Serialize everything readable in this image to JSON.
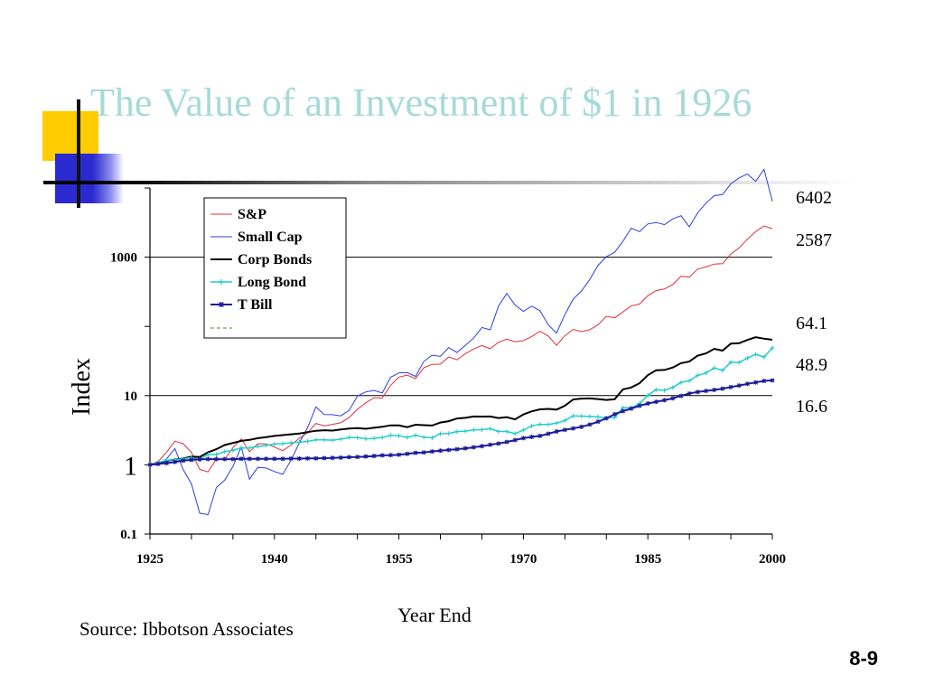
{
  "slide": {
    "title": "The Value of an Investment of $1 in 1926",
    "source": "Source: Ibbotson Associates",
    "page_number": "8-9"
  },
  "chart_data": {
    "type": "line",
    "title": "",
    "xlabel": "Year End",
    "ylabel": "Index",
    "yscale": "log",
    "xlim": [
      1925,
      2000
    ],
    "ylim": [
      0.1,
      10000
    ],
    "x_ticks": [
      "1925",
      "1940",
      "1955",
      "1970",
      "1985",
      "2000"
    ],
    "y_ticks": [
      {
        "value": 0.1,
        "label": "0.1",
        "style": "bold"
      },
      {
        "value": 1,
        "label": "1",
        "style": "large"
      },
      {
        "value": 10,
        "label": "10",
        "style": "bold"
      },
      {
        "value": 1000,
        "label": "1000",
        "style": "bold"
      }
    ],
    "gridlines_y": [
      10,
      1000
    ],
    "legend_position": "top-left",
    "end_labels": [
      "6402",
      "2587",
      "64.1",
      "48.9",
      "16.6"
    ],
    "series": [
      {
        "name": "S&P",
        "color": "#e0303a",
        "marker": "none",
        "width": 1,
        "x": [
          1925,
          1926,
          1927,
          1928,
          1929,
          1930,
          1931,
          1932,
          1933,
          1934,
          1935,
          1936,
          1937,
          1938,
          1939,
          1940,
          1941,
          1942,
          1943,
          1944,
          1945,
          1946,
          1947,
          1948,
          1949,
          1950,
          1951,
          1952,
          1953,
          1954,
          1955,
          1956,
          1957,
          1958,
          1959,
          1960,
          1961,
          1962,
          1963,
          1964,
          1965,
          1966,
          1967,
          1968,
          1969,
          1970,
          1971,
          1972,
          1973,
          1974,
          1975,
          1976,
          1977,
          1978,
          1979,
          1980,
          1981,
          1982,
          1983,
          1984,
          1985,
          1986,
          1987,
          1988,
          1989,
          1990,
          1991,
          1992,
          1993,
          1994,
          1995,
          1996,
          1997,
          1998,
          1999,
          2000
        ],
        "y": [
          1,
          1.12,
          1.53,
          2.2,
          2.02,
          1.52,
          0.86,
          0.79,
          1.21,
          1.2,
          1.77,
          2.37,
          1.54,
          2.02,
          2.01,
          1.81,
          1.6,
          1.93,
          2.42,
          2.9,
          3.96,
          3.64,
          3.85,
          4.06,
          4.82,
          6.35,
          7.87,
          9.32,
          9.23,
          14.1,
          18.5,
          19.8,
          17.6,
          25.3,
          28.3,
          28.5,
          36.1,
          33,
          40.4,
          47.1,
          52.9,
          47.6,
          59,
          65.5,
          60,
          62.4,
          71.4,
          84.9,
          72.5,
          53.3,
          73.1,
          90.5,
          84,
          89.5,
          106,
          140,
          133,
          162,
          198,
          210,
          278,
          329,
          347,
          404,
          532,
          515,
          672,
          723,
          796,
          807,
          1110,
          1364,
          1819,
          2339,
          2831,
          2587
        ]
      },
      {
        "name": "Small Cap",
        "color": "#2b3ee0",
        "marker": "none",
        "width": 1,
        "x": [
          1925,
          1926,
          1927,
          1928,
          1929,
          1930,
          1931,
          1932,
          1933,
          1934,
          1935,
          1936,
          1937,
          1938,
          1939,
          1940,
          1941,
          1942,
          1943,
          1944,
          1945,
          1946,
          1947,
          1948,
          1949,
          1950,
          1951,
          1952,
          1953,
          1954,
          1955,
          1956,
          1957,
          1958,
          1959,
          1960,
          1961,
          1962,
          1963,
          1964,
          1965,
          1966,
          1967,
          1968,
          1969,
          1970,
          1971,
          1972,
          1973,
          1974,
          1975,
          1976,
          1977,
          1978,
          1979,
          1980,
          1981,
          1982,
          1983,
          1984,
          1985,
          1986,
          1987,
          1988,
          1989,
          1990,
          1991,
          1992,
          1993,
          1994,
          1995,
          1996,
          1997,
          1998,
          1999,
          2000
        ],
        "y": [
          1,
          1,
          1.22,
          1.72,
          0.86,
          0.53,
          0.2,
          0.19,
          0.47,
          0.6,
          0.95,
          1.83,
          0.62,
          0.92,
          0.9,
          0.8,
          0.73,
          1.17,
          2.09,
          3.44,
          6.88,
          5.33,
          5.31,
          5.1,
          6.1,
          9.86,
          11.3,
          11.9,
          10.9,
          18.4,
          21.3,
          21.5,
          18.9,
          31.2,
          38.3,
          36.9,
          49.5,
          41.9,
          53.2,
          67.7,
          96.4,
          89.2,
          196,
          300,
          203,
          165,
          196,
          168,
          105,
          80,
          148,
          247,
          325,
          478,
          763,
          1017,
          1176,
          1696,
          2621,
          2344,
          3023,
          3171,
          2949,
          3573,
          3979,
          2745,
          4348,
          6040,
          7750,
          8030,
          11500,
          14000,
          15900,
          12500,
          18600,
          6402
        ]
      },
      {
        "name": "Corp Bonds",
        "color": "#000000",
        "marker": "none",
        "width": 2,
        "x": [
          1925,
          1926,
          1927,
          1928,
          1929,
          1930,
          1931,
          1932,
          1933,
          1934,
          1935,
          1936,
          1937,
          1938,
          1939,
          1940,
          1941,
          1942,
          1943,
          1944,
          1945,
          1946,
          1947,
          1948,
          1949,
          1950,
          1951,
          1952,
          1953,
          1954,
          1955,
          1956,
          1957,
          1958,
          1959,
          1960,
          1961,
          1962,
          1963,
          1964,
          1965,
          1966,
          1967,
          1968,
          1969,
          1970,
          1971,
          1972,
          1973,
          1974,
          1975,
          1976,
          1977,
          1978,
          1979,
          1980,
          1981,
          1982,
          1983,
          1984,
          1985,
          1986,
          1987,
          1988,
          1989,
          1990,
          1991,
          1992,
          1993,
          1994,
          1995,
          1996,
          1997,
          1998,
          1999,
          2000
        ],
        "y": [
          1,
          1.07,
          1.15,
          1.19,
          1.23,
          1.32,
          1.3,
          1.52,
          1.68,
          1.93,
          2.07,
          2.22,
          2.29,
          2.43,
          2.52,
          2.62,
          2.69,
          2.76,
          2.84,
          2.97,
          3.11,
          3.16,
          3.12,
          3.24,
          3.34,
          3.4,
          3.32,
          3.43,
          3.54,
          3.72,
          3.71,
          3.5,
          3.8,
          3.74,
          3.7,
          4.08,
          4.27,
          4.67,
          4.77,
          5,
          4.98,
          4.99,
          4.74,
          4.89,
          4.53,
          5.34,
          5.92,
          6.34,
          6.42,
          6.27,
          7.15,
          8.79,
          9.06,
          9.1,
          8.92,
          8.66,
          8.87,
          12.3,
          13.1,
          15.1,
          19.7,
          23.3,
          23.5,
          25.5,
          29.4,
          31.1,
          37.8,
          40.7,
          47.4,
          44.7,
          56.5,
          57.2,
          63.8,
          69.7,
          66.5,
          64.1
        ]
      },
      {
        "name": "Long Bond",
        "color": "#22cccc",
        "marker": "plus",
        "width": 1.5,
        "x": [
          1925,
          1926,
          1927,
          1928,
          1929,
          1930,
          1931,
          1932,
          1933,
          1934,
          1935,
          1936,
          1937,
          1938,
          1939,
          1940,
          1941,
          1942,
          1943,
          1944,
          1945,
          1946,
          1947,
          1948,
          1949,
          1950,
          1951,
          1952,
          1953,
          1954,
          1955,
          1956,
          1957,
          1958,
          1959,
          1960,
          1961,
          1962,
          1963,
          1964,
          1965,
          1966,
          1967,
          1968,
          1969,
          1970,
          1971,
          1972,
          1973,
          1974,
          1975,
          1976,
          1977,
          1978,
          1979,
          1980,
          1981,
          1982,
          1983,
          1984,
          1985,
          1986,
          1987,
          1988,
          1989,
          1990,
          1991,
          1992,
          1993,
          1994,
          1995,
          1996,
          1997,
          1998,
          1999,
          2000
        ],
        "y": [
          1,
          1.08,
          1.17,
          1.18,
          1.22,
          1.27,
          1.2,
          1.41,
          1.41,
          1.55,
          1.62,
          1.75,
          1.76,
          1.84,
          1.91,
          2,
          2.02,
          2.08,
          2.12,
          2.18,
          2.3,
          2.3,
          2.27,
          2.35,
          2.49,
          2.48,
          2.38,
          2.41,
          2.49,
          2.67,
          2.63,
          2.49,
          2.67,
          2.51,
          2.46,
          2.81,
          2.84,
          3.02,
          3.07,
          3.19,
          3.22,
          3.33,
          3.03,
          3.03,
          2.82,
          3.17,
          3.65,
          3.85,
          3.83,
          4,
          4.37,
          5.1,
          5.06,
          5,
          4.94,
          4.75,
          4.83,
          6.7,
          6.66,
          7.67,
          10.1,
          12.2,
          11.9,
          13.1,
          15.5,
          16.4,
          19.6,
          21.2,
          25.1,
          23.1,
          30.4,
          30.1,
          34.9,
          39.5,
          36.1,
          48.9
        ]
      },
      {
        "name": "T Bill",
        "color": "#1a1a99",
        "marker": "star",
        "width": 2,
        "x": [
          1925,
          1926,
          1927,
          1928,
          1929,
          1930,
          1931,
          1932,
          1933,
          1934,
          1935,
          1936,
          1937,
          1938,
          1939,
          1940,
          1941,
          1942,
          1943,
          1944,
          1945,
          1946,
          1947,
          1948,
          1949,
          1950,
          1951,
          1952,
          1953,
          1954,
          1955,
          1956,
          1957,
          1958,
          1959,
          1960,
          1961,
          1962,
          1963,
          1964,
          1965,
          1966,
          1967,
          1968,
          1969,
          1970,
          1971,
          1972,
          1973,
          1974,
          1975,
          1976,
          1977,
          1978,
          1979,
          1980,
          1981,
          1982,
          1983,
          1984,
          1985,
          1986,
          1987,
          1988,
          1989,
          1990,
          1991,
          1992,
          1993,
          1994,
          1995,
          1996,
          1997,
          1998,
          1999,
          2000
        ],
        "y": [
          1,
          1.03,
          1.06,
          1.1,
          1.15,
          1.18,
          1.2,
          1.21,
          1.21,
          1.21,
          1.21,
          1.22,
          1.22,
          1.22,
          1.22,
          1.22,
          1.22,
          1.23,
          1.23,
          1.24,
          1.24,
          1.25,
          1.26,
          1.27,
          1.29,
          1.3,
          1.32,
          1.34,
          1.37,
          1.38,
          1.4,
          1.44,
          1.49,
          1.51,
          1.56,
          1.6,
          1.64,
          1.68,
          1.73,
          1.79,
          1.86,
          1.95,
          2.03,
          2.14,
          2.28,
          2.43,
          2.53,
          2.62,
          2.81,
          3.03,
          3.2,
          3.36,
          3.54,
          3.82,
          4.2,
          4.7,
          5.39,
          5.96,
          6.49,
          7.13,
          7.69,
          8.15,
          8.59,
          9.14,
          9.9,
          10.7,
          11.3,
          11.7,
          12.1,
          12.6,
          13.3,
          14,
          14.8,
          15.5,
          16.3,
          16.6
        ]
      }
    ]
  }
}
